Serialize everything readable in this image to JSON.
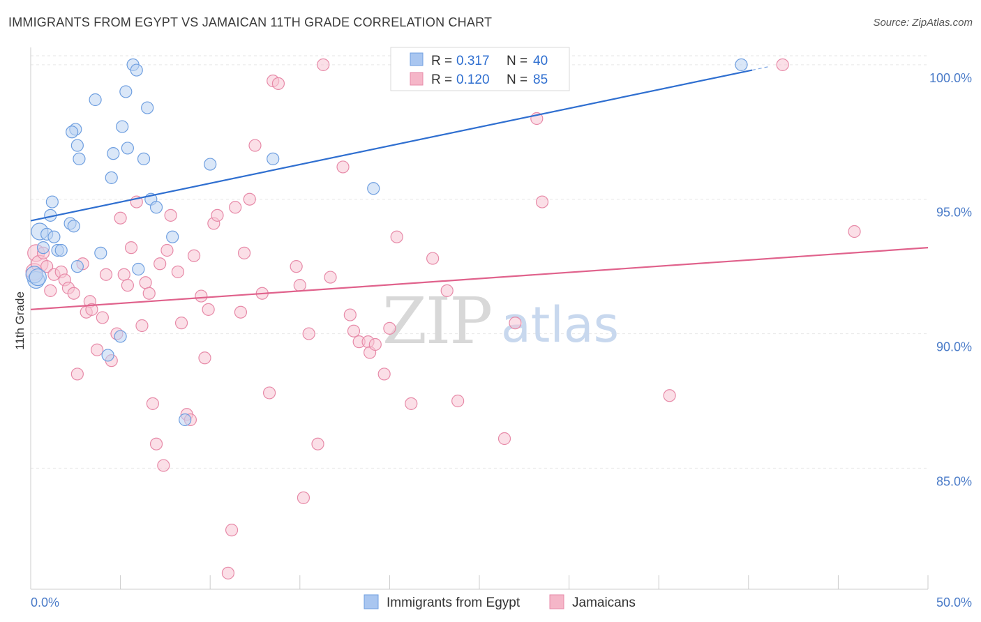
{
  "header": {
    "title": "IMMIGRANTS FROM EGYPT VS JAMAICAN 11TH GRADE CORRELATION CHART",
    "source": "Source: ZipAtlas.com"
  },
  "watermark": {
    "part1": "ZIP",
    "part2": "atlas"
  },
  "legend": {
    "rows": [
      {
        "r_label": "R = ",
        "r_value": "0.317",
        "n_label": "N = ",
        "n_value": "40",
        "color": "#a9c6f0"
      },
      {
        "r_label": "R = ",
        "r_value": "0.120",
        "n_label": "N = ",
        "n_value": "85",
        "color": "#f5b6c8"
      }
    ]
  },
  "chart_data": {
    "type": "scatter",
    "title": "IMMIGRANTS FROM EGYPT VS JAMAICAN 11TH GRADE CORRELATION CHART",
    "xlabel": "",
    "ylabel": "11th Grade",
    "xlim": [
      0,
      50
    ],
    "ylim": [
      80.5,
      100.8
    ],
    "x_tick_labels": [
      "0.0%",
      "50.0%"
    ],
    "y_ticks": [
      {
        "value": 100,
        "label": "100.0%"
      },
      {
        "value": 95,
        "label": "95.0%"
      },
      {
        "value": 90,
        "label": "90.0%"
      },
      {
        "value": 85,
        "label": "85.0%"
      }
    ],
    "grid": true,
    "legend_position": "top-center",
    "series": [
      {
        "name": "Immigrants from Egypt",
        "color": "#6f9fe0",
        "fill": "#bcd3f3",
        "trend": {
          "x0": 0,
          "y0": 94.2,
          "x1": 40.2,
          "y1": 99.8,
          "color": "#2f6fd0",
          "dash_to_x": 41.2
        },
        "points": [
          [
            0.3,
            92.0
          ],
          [
            0.5,
            93.8
          ],
          [
            0.7,
            93.2
          ],
          [
            0.9,
            93.7
          ],
          [
            1.1,
            94.4
          ],
          [
            1.2,
            94.9
          ],
          [
            1.3,
            93.6
          ],
          [
            1.5,
            93.1
          ],
          [
            1.7,
            93.1
          ],
          [
            2.2,
            94.1
          ],
          [
            2.4,
            94.0
          ],
          [
            2.6,
            92.5
          ],
          [
            2.5,
            97.6
          ],
          [
            2.3,
            97.5
          ],
          [
            2.7,
            96.5
          ],
          [
            2.6,
            97.0
          ],
          [
            3.6,
            98.7
          ],
          [
            3.9,
            93.0
          ],
          [
            4.3,
            89.2
          ],
          [
            4.5,
            95.8
          ],
          [
            4.6,
            96.7
          ],
          [
            5.0,
            89.9
          ],
          [
            5.1,
            97.7
          ],
          [
            5.3,
            99.0
          ],
          [
            5.4,
            96.9
          ],
          [
            5.7,
            100.0
          ],
          [
            5.9,
            99.8
          ],
          [
            6.0,
            92.4
          ],
          [
            6.3,
            96.5
          ],
          [
            6.5,
            98.4
          ],
          [
            6.7,
            95.0
          ],
          [
            7.0,
            94.7
          ],
          [
            7.9,
            93.6
          ],
          [
            8.6,
            86.8
          ],
          [
            10.0,
            96.3
          ],
          [
            13.5,
            96.5
          ],
          [
            19.1,
            95.4
          ],
          [
            39.6,
            100.0
          ],
          [
            0.2,
            92.2
          ],
          [
            0.4,
            92.1
          ]
        ]
      },
      {
        "name": "Jamaicans",
        "color": "#e78aa8",
        "fill": "#f7c4d3",
        "trend": {
          "x0": 0,
          "y0": 90.9,
          "x1": 50,
          "y1": 93.2,
          "color": "#e0628c"
        },
        "points": [
          [
            0.2,
            92.3
          ],
          [
            0.3,
            93.0
          ],
          [
            0.5,
            92.6
          ],
          [
            0.7,
            93.0
          ],
          [
            0.9,
            92.5
          ],
          [
            1.1,
            91.6
          ],
          [
            1.3,
            92.2
          ],
          [
            1.7,
            92.3
          ],
          [
            1.9,
            92.0
          ],
          [
            2.1,
            91.7
          ],
          [
            2.4,
            91.5
          ],
          [
            2.6,
            88.5
          ],
          [
            2.9,
            92.6
          ],
          [
            3.1,
            90.8
          ],
          [
            3.3,
            91.2
          ],
          [
            3.4,
            90.9
          ],
          [
            3.7,
            89.4
          ],
          [
            4.0,
            90.6
          ],
          [
            4.2,
            92.2
          ],
          [
            4.5,
            89.0
          ],
          [
            4.8,
            90.0
          ],
          [
            5.0,
            94.3
          ],
          [
            5.2,
            92.2
          ],
          [
            5.4,
            91.8
          ],
          [
            5.6,
            93.2
          ],
          [
            5.9,
            94.9
          ],
          [
            6.2,
            90.3
          ],
          [
            6.4,
            91.9
          ],
          [
            6.6,
            91.5
          ],
          [
            6.8,
            87.4
          ],
          [
            7.0,
            85.9
          ],
          [
            7.2,
            92.6
          ],
          [
            7.4,
            85.1
          ],
          [
            7.6,
            93.1
          ],
          [
            7.8,
            94.4
          ],
          [
            8.2,
            92.3
          ],
          [
            8.4,
            90.4
          ],
          [
            8.7,
            87.0
          ],
          [
            8.9,
            86.8
          ],
          [
            9.1,
            92.9
          ],
          [
            9.5,
            91.4
          ],
          [
            9.7,
            89.1
          ],
          [
            9.9,
            90.9
          ],
          [
            10.2,
            94.1
          ],
          [
            10.4,
            94.4
          ],
          [
            11.0,
            81.1
          ],
          [
            11.2,
            82.7
          ],
          [
            11.4,
            94.7
          ],
          [
            11.7,
            90.8
          ],
          [
            11.9,
            93.0
          ],
          [
            12.2,
            95.0
          ],
          [
            12.5,
            97.0
          ],
          [
            12.9,
            91.5
          ],
          [
            13.3,
            87.8
          ],
          [
            13.5,
            99.4
          ],
          [
            13.8,
            99.3
          ],
          [
            14.8,
            92.5
          ],
          [
            15.0,
            91.8
          ],
          [
            15.2,
            83.9
          ],
          [
            15.5,
            90.0
          ],
          [
            16.0,
            85.9
          ],
          [
            16.3,
            100.0
          ],
          [
            16.7,
            92.1
          ],
          [
            17.4,
            96.2
          ],
          [
            17.8,
            90.7
          ],
          [
            18.0,
            90.1
          ],
          [
            18.3,
            89.7
          ],
          [
            18.8,
            89.7
          ],
          [
            18.9,
            89.3
          ],
          [
            19.2,
            89.6
          ],
          [
            19.7,
            88.5
          ],
          [
            20.0,
            90.2
          ],
          [
            20.4,
            93.6
          ],
          [
            21.2,
            87.4
          ],
          [
            22.4,
            92.8
          ],
          [
            23.2,
            91.6
          ],
          [
            23.8,
            87.5
          ],
          [
            26.4,
            86.1
          ],
          [
            27.0,
            90.4
          ],
          [
            27.2,
            100.0
          ],
          [
            28.2,
            98.0
          ],
          [
            28.5,
            94.9
          ],
          [
            41.9,
            100.0
          ],
          [
            35.6,
            87.7
          ],
          [
            45.9,
            93.8
          ]
        ]
      }
    ]
  }
}
